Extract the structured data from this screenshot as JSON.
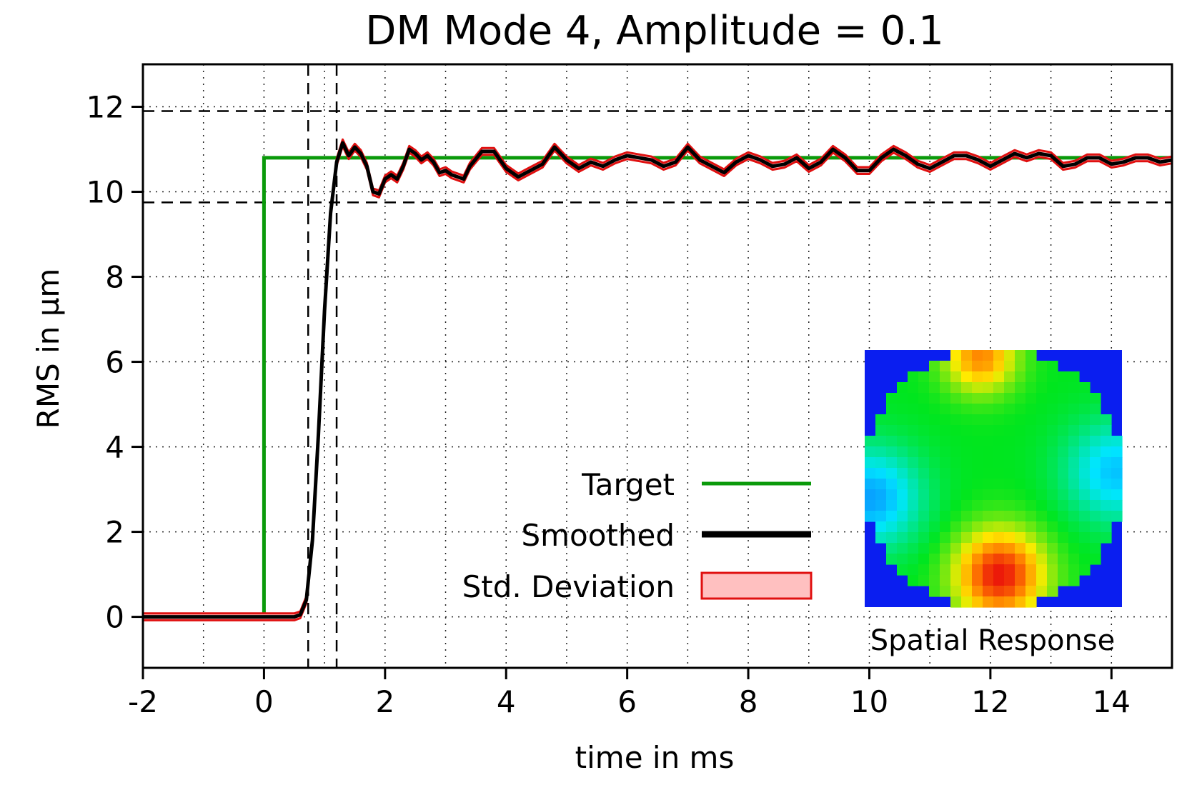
{
  "chart_data": {
    "type": "line",
    "title": "DM Mode 4, Amplitude = 0.1",
    "xlabel": "time in ms",
    "ylabel": "RMS in µm",
    "xlim": [
      -2,
      15
    ],
    "ylim": [
      -1.2,
      13
    ],
    "xticks": [
      -2,
      0,
      2,
      4,
      6,
      8,
      10,
      12,
      14
    ],
    "yticks": [
      0,
      2,
      4,
      6,
      8,
      10,
      12
    ],
    "grid": true,
    "legend_position": "bottom-center",
    "reference_lines": {
      "horizontal": [
        9.75,
        11.9
      ],
      "vertical": [
        0.73,
        1.2
      ]
    },
    "series": [
      {
        "name": "Target",
        "color": "#0a9a0a",
        "x": [
          -2,
          0,
          0,
          15
        ],
        "y": [
          0,
          0,
          10.8,
          10.8
        ]
      },
      {
        "name": "Smoothed",
        "color": "#000000",
        "x": [
          -2,
          0.5,
          0.6,
          0.7,
          0.8,
          0.9,
          1.0,
          1.1,
          1.2,
          1.3,
          1.4,
          1.5,
          1.6,
          1.7,
          1.8,
          1.9,
          2.0,
          2.1,
          2.2,
          2.3,
          2.4,
          2.5,
          2.6,
          2.7,
          2.8,
          2.9,
          3.0,
          3.1,
          3.2,
          3.3,
          3.4,
          3.6,
          3.8,
          4.0,
          4.2,
          4.4,
          4.6,
          4.8,
          5.0,
          5.2,
          5.4,
          5.6,
          5.8,
          6.0,
          6.2,
          6.4,
          6.6,
          6.8,
          7.0,
          7.2,
          7.4,
          7.6,
          7.8,
          8.0,
          8.2,
          8.4,
          8.6,
          8.8,
          9.0,
          9.2,
          9.4,
          9.6,
          9.8,
          10.0,
          10.2,
          10.4,
          10.6,
          10.8,
          11.0,
          11.2,
          11.4,
          11.6,
          11.8,
          12.0,
          12.2,
          12.4,
          12.6,
          12.8,
          13.0,
          13.2,
          13.4,
          13.6,
          13.8,
          14.0,
          14.2,
          14.4,
          14.6,
          14.8,
          15.0
        ],
        "y": [
          0,
          0,
          0.05,
          0.4,
          1.8,
          4.3,
          7.2,
          9.5,
          10.7,
          11.15,
          10.85,
          11.05,
          10.9,
          10.6,
          10.0,
          9.95,
          10.3,
          10.4,
          10.3,
          10.6,
          11.0,
          10.9,
          10.75,
          10.85,
          10.7,
          10.45,
          10.5,
          10.4,
          10.35,
          10.3,
          10.6,
          10.95,
          10.95,
          10.55,
          10.35,
          10.5,
          10.65,
          11.05,
          10.75,
          10.55,
          10.7,
          10.6,
          10.75,
          10.85,
          10.8,
          10.75,
          10.6,
          10.7,
          11.05,
          10.75,
          10.6,
          10.45,
          10.7,
          10.85,
          10.75,
          10.6,
          10.65,
          10.8,
          10.55,
          10.7,
          11.0,
          10.8,
          10.5,
          10.5,
          10.8,
          11.0,
          10.85,
          10.65,
          10.55,
          10.7,
          10.85,
          10.85,
          10.75,
          10.6,
          10.75,
          10.9,
          10.8,
          10.9,
          10.85,
          10.6,
          10.65,
          10.8,
          10.8,
          10.65,
          10.7,
          10.8,
          10.8,
          10.7,
          10.75
        ]
      },
      {
        "name": "Std. Deviation",
        "color": "#e01010",
        "fill": "#ffc0c0",
        "band_halfwidth": 0.08
      }
    ],
    "inset_caption": "Spatial Response"
  }
}
